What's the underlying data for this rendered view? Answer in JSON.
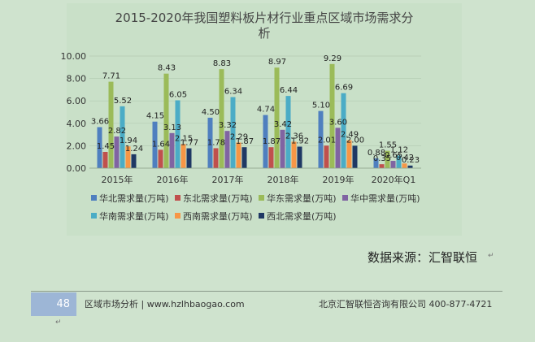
{
  "chart_data": {
    "type": "bar",
    "title": "2015-2020年我国塑料板片材行业重点区域市场需求分析",
    "categories": [
      "2015年",
      "2016年",
      "2017年",
      "2018年",
      "2019年",
      "2020年Q1"
    ],
    "ylim": [
      0,
      10
    ],
    "yticks": [
      "0.00",
      "2.00",
      "4.00",
      "6.00",
      "8.00",
      "10.00"
    ],
    "legend_position": "bottom",
    "series": [
      {
        "name": "华北需求量(万吨)",
        "color": "#4f7fbf",
        "values": [
          3.66,
          4.15,
          4.5,
          4.74,
          5.1,
          0.88
        ]
      },
      {
        "name": "东北需求量(万吨)",
        "color": "#c0504d",
        "values": [
          1.45,
          1.64,
          1.78,
          1.87,
          2.01,
          0.35
        ]
      },
      {
        "name": "华东需求量(万吨)",
        "color": "#9bbb59",
        "values": [
          7.71,
          8.43,
          8.83,
          8.97,
          9.29,
          1.55
        ]
      },
      {
        "name": "华中需求量(万吨)",
        "color": "#8064a2",
        "values": [
          2.82,
          3.13,
          3.32,
          3.42,
          3.6,
          0.65
        ]
      },
      {
        "name": "华南需求量(万吨)",
        "color": "#4bacc6",
        "values": [
          5.52,
          6.05,
          6.34,
          6.44,
          6.69,
          1.12
        ]
      },
      {
        "name": "西南需求量(万吨)",
        "color": "#f79646",
        "values": [
          1.94,
          2.15,
          2.29,
          2.36,
          2.49,
          0.42
        ]
      },
      {
        "name": "西北需求量(万吨)",
        "color": "#1f3864",
        "values": [
          1.24,
          1.77,
          1.87,
          1.92,
          2.0,
          0.23
        ]
      }
    ]
  },
  "source_text": "数据来源：汇智联恒",
  "footer": {
    "page_number": "48",
    "left_text": "区域市场分析 | www.hzlhbaogao.com",
    "right_text": "北京汇智联恒咨询有限公司  400-877-4721"
  }
}
